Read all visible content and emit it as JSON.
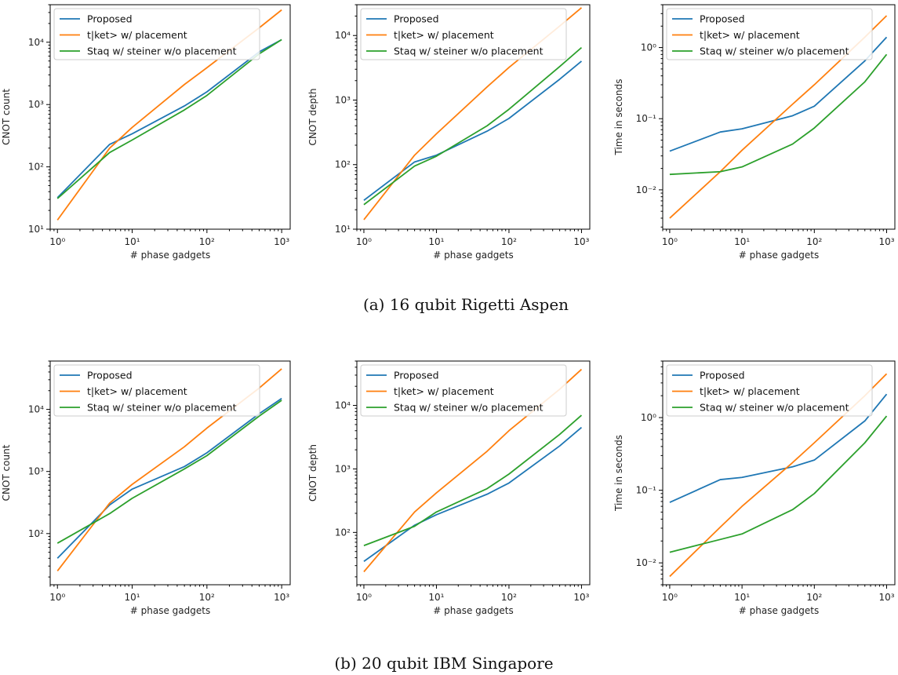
{
  "colors": {
    "Proposed": "#1f77b4",
    "tket": "#ff7f0e",
    "staq": "#2ca02c"
  },
  "captions": [
    "(a) 16 qubit Rigetti Aspen",
    "(b) 20 qubit IBM Singapore"
  ],
  "chart_data": [
    {
      "type": "line",
      "scale": "log-log",
      "legend": "top-left",
      "xlabel": "# phase gadgets",
      "ylabel": "CNOT count",
      "xlim": [
        0.8,
        1300
      ],
      "ylim": [
        10,
        40000
      ],
      "x": [
        1,
        5,
        10,
        50,
        100,
        500,
        1000
      ],
      "series": [
        {
          "name": "Proposed",
          "values": [
            32,
            230,
            340,
            950,
            1600,
            7000,
            11000
          ]
        },
        {
          "name": "t|ket> w/ placement",
          "values": [
            14,
            200,
            430,
            2100,
            3900,
            17000,
            33000
          ]
        },
        {
          "name": "Staq w/ steiner w/o placement",
          "values": [
            31,
            170,
            270,
            820,
            1400,
            6500,
            11000
          ]
        }
      ]
    },
    {
      "type": "line",
      "scale": "log-log",
      "legend": "top-left",
      "xlabel": "# phase gadgets",
      "ylabel": "CNOT depth",
      "xlim": [
        0.8,
        1300
      ],
      "ylim": [
        10,
        30000
      ],
      "x": [
        1,
        5,
        10,
        50,
        100,
        500,
        1000
      ],
      "series": [
        {
          "name": "Proposed",
          "values": [
            28,
            110,
            140,
            330,
            520,
            2100,
            4000
          ]
        },
        {
          "name": "t|ket> w/ placement",
          "values": [
            14,
            140,
            300,
            1600,
            3200,
            14000,
            27000
          ]
        },
        {
          "name": "Staq w/ steiner w/o placement",
          "values": [
            24,
            95,
            135,
            400,
            720,
            3300,
            6500
          ]
        }
      ]
    },
    {
      "type": "line",
      "scale": "log-log",
      "legend": "top-left",
      "xlabel": "# phase gadgets",
      "ylabel": "Time in seconds",
      "xlim": [
        0.8,
        1300
      ],
      "ylim": [
        0.0028,
        4
      ],
      "x": [
        1,
        5,
        10,
        50,
        100,
        500,
        1000
      ],
      "series": [
        {
          "name": "Proposed",
          "values": [
            0.035,
            0.065,
            0.072,
            0.11,
            0.15,
            0.65,
            1.4
          ]
        },
        {
          "name": "t|ket> w/ placement",
          "values": [
            0.004,
            0.018,
            0.036,
            0.16,
            0.3,
            1.4,
            2.8
          ]
        },
        {
          "name": "Staq w/ steiner w/o placement",
          "values": [
            0.0165,
            0.018,
            0.021,
            0.044,
            0.074,
            0.33,
            0.8
          ]
        }
      ]
    },
    {
      "type": "line",
      "scale": "log-log",
      "legend": "top-left",
      "xlabel": "# phase gadgets",
      "ylabel": "CNOT count",
      "xlim": [
        0.8,
        1300
      ],
      "ylim": [
        15,
        60000
      ],
      "x": [
        1,
        5,
        10,
        50,
        100,
        500,
        1000
      ],
      "series": [
        {
          "name": "Proposed",
          "values": [
            40,
            290,
            520,
            1200,
            2000,
            8500,
            15000
          ]
        },
        {
          "name": "t|ket> w/ placement",
          "values": [
            25,
            310,
            620,
            2500,
            5000,
            22000,
            45000
          ]
        },
        {
          "name": "Staq w/ steiner w/o placement",
          "values": [
            70,
            210,
            370,
            1100,
            1800,
            7800,
            14000
          ]
        }
      ]
    },
    {
      "type": "line",
      "scale": "log-log",
      "legend": "top-left",
      "xlabel": "# phase gadgets",
      "ylabel": "CNOT depth",
      "xlim": [
        0.8,
        1300
      ],
      "ylim": [
        15,
        50000
      ],
      "x": [
        1,
        5,
        10,
        50,
        100,
        500,
        1000
      ],
      "series": [
        {
          "name": "Proposed",
          "values": [
            35,
            130,
            190,
            400,
            600,
            2300,
            4500
          ]
        },
        {
          "name": "t|ket> w/ placement",
          "values": [
            24,
            210,
            420,
            1900,
            4000,
            18000,
            37000
          ]
        },
        {
          "name": "Staq w/ steiner w/o placement",
          "values": [
            62,
            125,
            210,
            490,
            830,
            3500,
            7000
          ]
        }
      ]
    },
    {
      "type": "line",
      "scale": "log-log",
      "legend": "top-left",
      "xlabel": "# phase gadgets",
      "ylabel": "Time in seconds",
      "xlim": [
        0.8,
        1300
      ],
      "ylim": [
        0.005,
        6
      ],
      "x": [
        1,
        5,
        10,
        50,
        100,
        500,
        1000
      ],
      "series": [
        {
          "name": "Proposed",
          "values": [
            0.068,
            0.14,
            0.15,
            0.21,
            0.26,
            0.9,
            2.1
          ]
        },
        {
          "name": "t|ket> w/ placement",
          "values": [
            0.0065,
            0.031,
            0.06,
            0.24,
            0.45,
            2.0,
            4.0
          ]
        },
        {
          "name": "Staq w/ steiner w/o placement",
          "values": [
            0.014,
            0.021,
            0.025,
            0.054,
            0.09,
            0.45,
            1.05
          ]
        }
      ]
    }
  ]
}
